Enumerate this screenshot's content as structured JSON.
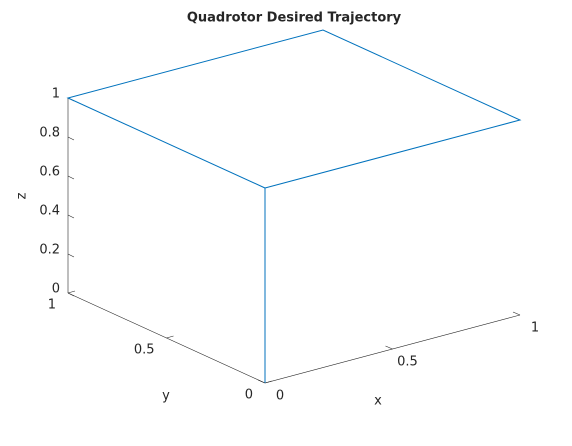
{
  "chart_data": {
    "type": "line3d",
    "title": "Quadrotor Desired Trajectory",
    "xlabel": "x",
    "ylabel": "y",
    "zlabel": "z",
    "x": [
      0,
      0,
      0,
      1,
      1,
      0
    ],
    "y": [
      0,
      0,
      1,
      1,
      0,
      0
    ],
    "z": [
      0,
      1,
      1,
      1,
      1,
      1
    ],
    "color": "#0072bd",
    "xlim": [
      0,
      1
    ],
    "ylim": [
      0,
      1
    ],
    "zlim": [
      0,
      1
    ],
    "xticks": [
      0,
      0.5,
      1
    ],
    "yticks": [
      0,
      0.5,
      1
    ],
    "zticks": [
      0,
      0.2,
      0.4,
      0.6,
      0.8,
      1
    ]
  }
}
